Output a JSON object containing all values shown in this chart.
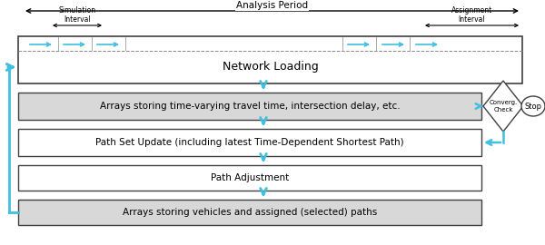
{
  "bg_color": "#ffffff",
  "arrow_color": "#40bfdf",
  "box_line_color": "#404040",
  "network_loading_bg": "#ffffff",
  "array_box_bg": "#d8d8d8",
  "path_box_bg": "#ffffff",
  "analysis_period_label": "Analysis Period",
  "simulation_interval_label": "Simulation\nInterval",
  "assignment_interval_label": "Assignment\nInterval",
  "network_loading_label": "Network Loading",
  "box1_label": "Arrays storing time-varying travel time, intersection delay, etc.",
  "box2_label": "Path Set Update (including latest Time-Dependent Shortest Path)",
  "box3_label": "Path Adjustment",
  "box4_label": "Arrays storing vehicles and assigned (selected) paths",
  "converge_label": "Converg.\nCheck",
  "stop_label": "Stop",
  "fig_width": 6.0,
  "fig_height": 2.7
}
